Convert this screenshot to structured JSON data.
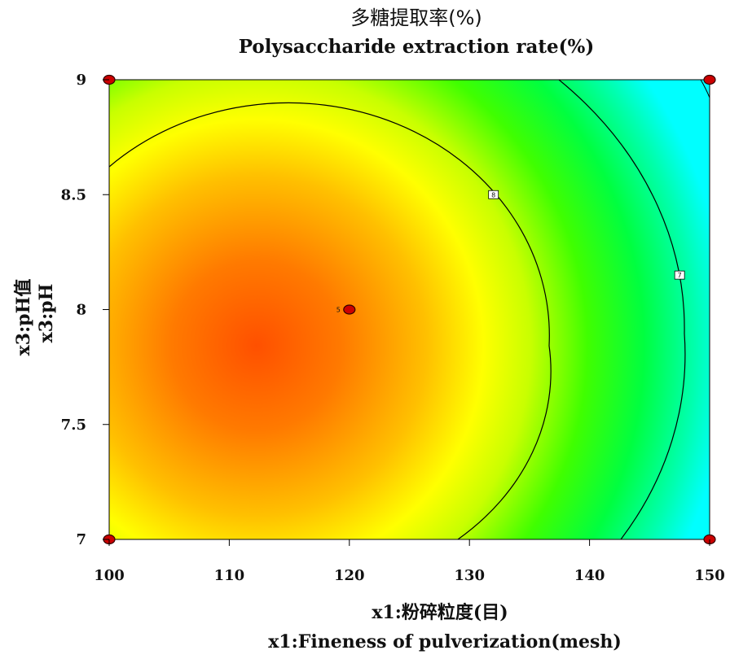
{
  "chart_data": {
    "type": "contour",
    "title": "多糖提取率(%)",
    "subtitle": "Polysaccharide extraction rate(%)",
    "xlabel": "x1:粉碎粒度(目)",
    "xlabel_en": "x1:Fineness of pulverization(mesh)",
    "ylabel": "x3:pH值",
    "ylabel_en": "x3:pH",
    "xlim": [
      100,
      150
    ],
    "ylim": [
      7,
      9
    ],
    "x_ticks": [
      "100",
      "110",
      "120",
      "130",
      "140",
      "150"
    ],
    "y_ticks": [
      "7",
      "7.5",
      "8",
      "8.5",
      "9"
    ],
    "center_point": {
      "x": 120,
      "y": 8,
      "label": "5"
    },
    "design_points": [
      {
        "x": 100,
        "y": 7
      },
      {
        "x": 150,
        "y": 7
      },
      {
        "x": 100,
        "y": 9
      },
      {
        "x": 150,
        "y": 9
      },
      {
        "x": 120,
        "y": 8
      }
    ],
    "contours": [
      {
        "label": "8",
        "label_x": 132,
        "label_y": 8.5
      },
      {
        "label": "7",
        "label_x": 147.5,
        "label_y": 8.15
      }
    ],
    "colors": {
      "max": "#ff5000",
      "mid": "#ffff00",
      "low": "#00ff00",
      "min": "#00ffff",
      "point": "#cc0000"
    }
  }
}
